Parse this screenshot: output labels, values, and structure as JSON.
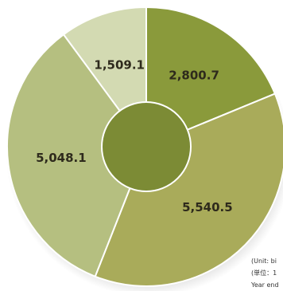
{
  "chart_data": {
    "type": "pie",
    "style": "donut",
    "slices": [
      {
        "label": "2,800.7",
        "value": 2800.7,
        "color": "#8a9a3b"
      },
      {
        "label": "5,540.5",
        "value": 5540.5,
        "color": "#a9ab5a"
      },
      {
        "label": "5,048.1",
        "value": 5048.1,
        "color": "#b5bf80"
      },
      {
        "label": "1,509.1",
        "value": 1509.1,
        "color": "#d3dab2"
      }
    ],
    "center_color": "#7c8b35",
    "start_angle_deg": 0,
    "direction": "clockwise"
  },
  "notes": {
    "unit": "(Unit: bi",
    "unit_jp": "(単位：1",
    "year": "Year end"
  }
}
